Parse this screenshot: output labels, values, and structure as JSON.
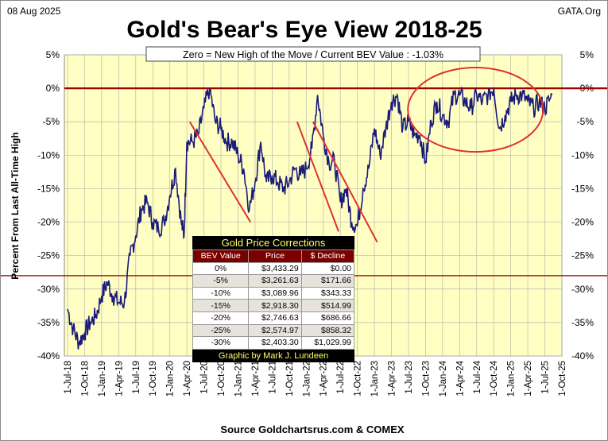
{
  "header": {
    "date": "08 Aug 2025",
    "site": "GATA.Org",
    "title": "Gold's Bear's Eye View 2018-25"
  },
  "chart_data": {
    "type": "line",
    "title": "Gold's Bear's Eye View 2018-25",
    "subtitle": "Zero = New High of the Move / Current  BEV Value : -1.03%",
    "ylabel": "Percent  From  Last  All-Time  High",
    "xlabel": "Source Goldchartsrus.com & COMEX",
    "ylim": [
      -40,
      5
    ],
    "yticks": [
      "5%",
      "0%",
      "-5%",
      "-10%",
      "-15%",
      "-20%",
      "-25%",
      "-30%",
      "-35%",
      "-40%"
    ],
    "xticks": [
      "1-Jul-18",
      "1-Oct-18",
      "1-Jan-19",
      "1-Apr-19",
      "1-Jul-19",
      "1-Oct-19",
      "1-Jan-20",
      "1-Apr-20",
      "1-Jul-20",
      "1-Oct-20",
      "1-Jan-21",
      "1-Apr-21",
      "1-Jul-21",
      "1-Oct-21",
      "1-Jan-22",
      "1-Apr-22",
      "1-Jul-22",
      "1-Oct-22",
      "1-Jan-23",
      "1-Apr-23",
      "1-Jul-23",
      "1-Oct-23",
      "1-Jan-24",
      "1-Apr-24",
      "1-Jul-24",
      "1-Oct-24",
      "1-Jan-25",
      "1-Apr-25",
      "1-Jul-25",
      "1-Oct-25"
    ],
    "x_unit": "months since 1-Jul-18",
    "grid": true,
    "series": [
      {
        "name": "BEV",
        "color": "#1a1a7a",
        "x": [
          0,
          1,
          2,
          3,
          4,
          5,
          6,
          7,
          8,
          9,
          10,
          11,
          12,
          13,
          14,
          15,
          16,
          17,
          18,
          19,
          20,
          20.5,
          21,
          22,
          23,
          24,
          25,
          26,
          27,
          28,
          29,
          30,
          31,
          32,
          33,
          34,
          35,
          36,
          37,
          38,
          39,
          40,
          41,
          42,
          43,
          44,
          45,
          46,
          47,
          48,
          49,
          50,
          51,
          52,
          53,
          54,
          55,
          56,
          57,
          58,
          59,
          60,
          61,
          62,
          63,
          64,
          65,
          66,
          67,
          68,
          69,
          70,
          71,
          72,
          73,
          74,
          75,
          76,
          77,
          78,
          79,
          80,
          81,
          82,
          83,
          84,
          85,
          85.25
        ],
        "y": [
          -33,
          -36,
          -38,
          -36.5,
          -35,
          -34,
          -31,
          -29,
          -31,
          -32,
          -32,
          -25,
          -22,
          -18,
          -17,
          -20,
          -21,
          -20,
          -16,
          -12,
          -20,
          -22,
          -8,
          -8,
          -7,
          -3,
          0,
          -5,
          -6,
          -8,
          -8,
          -10,
          -12,
          -18,
          -14,
          -8,
          -14,
          -13,
          -14,
          -15,
          -14,
          -12,
          -13,
          -12,
          -9,
          -1,
          -7,
          -11,
          -11,
          -17,
          -15,
          -20,
          -20.5,
          -15,
          -12,
          -6,
          -10,
          -6,
          -2,
          -1,
          -6,
          -5,
          -7,
          -7,
          -11,
          -5,
          -2,
          -4,
          -5,
          -1,
          -1,
          -2,
          -3,
          -1,
          -2,
          -1,
          0,
          -6,
          -4,
          -2,
          -1,
          -1,
          -2,
          -3,
          -2,
          -3,
          -1.5,
          -1.03
        ]
      }
    ],
    "reference_lines": [
      {
        "y": 0,
        "color": "#a00000"
      },
      {
        "y": -28,
        "color": "#a00000"
      }
    ],
    "trend_lines": [
      {
        "from": [
          21.5,
          -5
        ],
        "to": [
          32.2,
          -20
        ]
      },
      {
        "from": [
          40.4,
          -5
        ],
        "to": [
          47.7,
          -21.4
        ]
      },
      {
        "from": [
          43.2,
          -5
        ],
        "to": [
          54.5,
          -23
        ]
      }
    ],
    "highlight_ellipse": {
      "center": [
        71.8,
        -3.2
      ],
      "radius_months": 11.9,
      "radius_pct": 6.3
    }
  },
  "table": {
    "title": "Gold Price Corrections",
    "columns": [
      "BEV Value",
      "Price",
      "$ Decline"
    ],
    "rows": [
      [
        "0%",
        "$3,433.29",
        "$0.00"
      ],
      [
        "-5%",
        "$3,261.63",
        "$171.66"
      ],
      [
        "-10%",
        "$3,089.96",
        "$343.33"
      ],
      [
        "-15%",
        "$2,918.30",
        "$514.99"
      ],
      [
        "-20%",
        "$2,746.63",
        "$686.66"
      ],
      [
        "-25%",
        "$2,574.97",
        "$858.32"
      ],
      [
        "-30%",
        "$2,403.30",
        "$1,029.99"
      ]
    ],
    "footer": "Graphic by Mark J. Lundeen"
  }
}
